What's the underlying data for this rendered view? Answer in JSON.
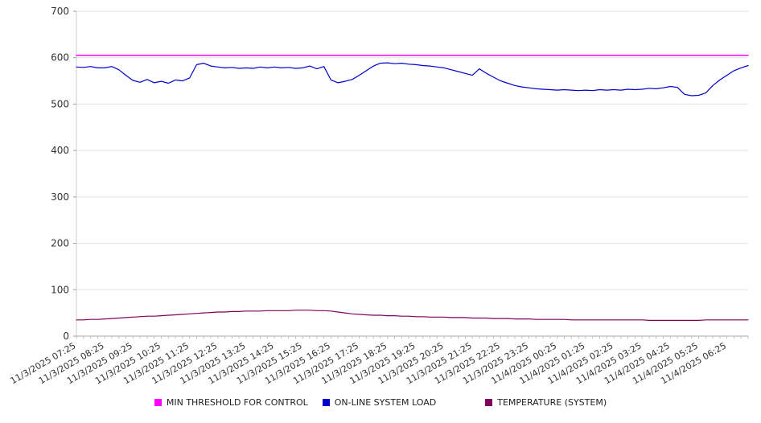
{
  "chart_data": {
    "type": "line",
    "ylim": [
      0,
      700
    ],
    "yticks": [
      0,
      100,
      200,
      300,
      400,
      500,
      600,
      700
    ],
    "grid": "horizontal",
    "legend_position": "bottom",
    "points_per_label": 4,
    "x_labels": [
      "11/3/2025 07:25",
      "11/3/2025 08:25",
      "11/3/2025 09:25",
      "11/3/2025 10:25",
      "11/3/2025 11:25",
      "11/3/2025 12:25",
      "11/3/2025 13:25",
      "11/3/2025 14:25",
      "11/3/2025 15:25",
      "11/3/2025 16:25",
      "11/3/2025 17:25",
      "11/3/2025 18:25",
      "11/3/2025 19:25",
      "11/3/2025 20:25",
      "11/3/2025 21:25",
      "11/3/2025 22:25",
      "11/3/2025 23:25",
      "11/4/2025 00:25",
      "11/4/2025 01:25",
      "11/4/2025 02:25",
      "11/4/2025 03:25",
      "11/4/2025 04:25",
      "11/4/2025 05:25",
      "11/4/2025 06:25"
    ],
    "series": [
      {
        "name": "MIN THRESHOLD FOR CONTROL",
        "color": "#ff00ff",
        "constant": 605
      },
      {
        "name": "ON-LINE SYSTEM LOAD",
        "color": "#0000cc",
        "values": [
          580,
          579,
          581,
          578,
          578,
          581,
          574,
          562,
          551,
          547,
          553,
          546,
          549,
          545,
          552,
          550,
          556,
          585,
          588,
          582,
          580,
          578,
          579,
          577,
          578,
          577,
          580,
          578,
          580,
          578,
          579,
          577,
          578,
          582,
          576,
          581,
          552,
          546,
          549,
          553,
          562,
          572,
          582,
          588,
          589,
          587,
          588,
          586,
          585,
          583,
          582,
          580,
          578,
          574,
          570,
          566,
          562,
          576,
          566,
          558,
          550,
          545,
          540,
          537,
          535,
          533,
          532,
          531,
          530,
          531,
          530,
          529,
          530,
          529,
          531,
          530,
          531,
          530,
          532,
          531,
          532,
          534,
          533,
          535,
          538,
          536,
          521,
          518,
          519,
          524,
          540,
          552,
          562,
          572,
          578,
          583
        ]
      },
      {
        "name": "TEMPERATURE (SYSTEM)",
        "color": "#800060",
        "values": [
          35,
          35,
          36,
          36,
          37,
          38,
          39,
          40,
          41,
          42,
          43,
          43,
          44,
          45,
          46,
          47,
          48,
          49,
          50,
          51,
          52,
          52,
          53,
          53,
          54,
          54,
          54,
          55,
          55,
          55,
          55,
          56,
          56,
          56,
          55,
          55,
          54,
          52,
          50,
          48,
          47,
          46,
          45,
          45,
          44,
          44,
          43,
          43,
          42,
          42,
          41,
          41,
          41,
          40,
          40,
          40,
          39,
          39,
          39,
          38,
          38,
          38,
          37,
          37,
          37,
          36,
          36,
          36,
          36,
          36,
          35,
          35,
          35,
          35,
          35,
          35,
          35,
          35,
          35,
          35,
          35,
          34,
          34,
          34,
          34,
          34,
          34,
          34,
          34,
          35,
          35,
          35,
          35,
          35,
          35,
          35
        ]
      }
    ]
  }
}
